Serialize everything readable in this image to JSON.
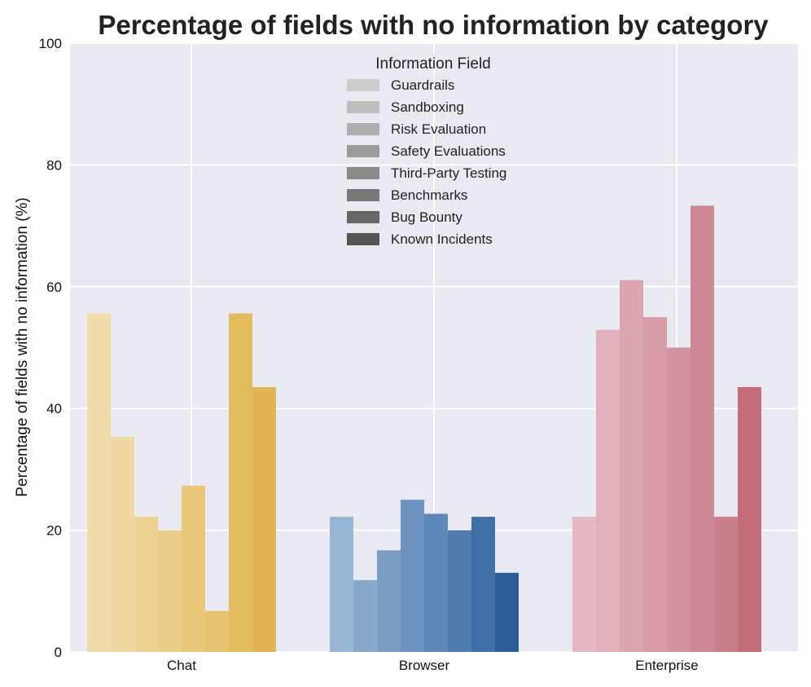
{
  "chart_data": {
    "type": "bar",
    "title": "Percentage of fields with no information by category",
    "xlabel": "",
    "ylabel": "Percentage of fields with no information (%)",
    "ylim": [
      0,
      100
    ],
    "yticks": [
      0,
      20,
      40,
      60,
      80,
      100
    ],
    "categories": [
      "Chat",
      "Browser",
      "Enterprise"
    ],
    "legend": {
      "title": "Information Field",
      "placement": "top-center"
    },
    "series": [
      {
        "name": "Guardrails",
        "values": [
          55.6,
          22.2,
          22.2
        ]
      },
      {
        "name": "Sandboxing",
        "values": [
          35.3,
          11.8,
          52.9
        ]
      },
      {
        "name": "Risk Evaluation",
        "values": [
          22.2,
          16.7,
          61.1
        ]
      },
      {
        "name": "Safety Evaluations",
        "values": [
          20.0,
          25.0,
          55.0
        ]
      },
      {
        "name": "Third-Party Testing",
        "values": [
          27.3,
          22.7,
          50.0
        ]
      },
      {
        "name": "Benchmarks",
        "values": [
          6.7,
          20.0,
          73.3
        ]
      },
      {
        "name": "Bug Bounty",
        "values": [
          55.6,
          22.2,
          22.2
        ]
      },
      {
        "name": "Known Incidents",
        "values": [
          43.5,
          13.0,
          43.5
        ]
      }
    ],
    "colors": {
      "Chat": [
        "#f0dca8",
        "#eed7a0",
        "#ecd293",
        "#eacc86",
        "#e8c67a",
        "#e6c16e",
        "#e4bb5f",
        "#e2b552"
      ],
      "Browser": [
        "#98b6d3",
        "#8aa8c9",
        "#7b9dc4",
        "#6c92bf",
        "#5e88b7",
        "#4f7cad",
        "#3d6ea6",
        "#2b5e98"
      ],
      "Enterprise": [
        "#e8b8c2",
        "#e1afb9",
        "#dca6b1",
        "#d79ca8",
        "#d2939f",
        "#ce8895",
        "#ca7e8b",
        "#c56c7b"
      ],
      "legend": [
        "#cccccc",
        "#bebebe",
        "#afafaf",
        "#9c9c9c",
        "#8a8a8a",
        "#787878",
        "#666666",
        "#555555"
      ],
      "background": "#e9e9f1",
      "grid": "#ffffff"
    }
  }
}
